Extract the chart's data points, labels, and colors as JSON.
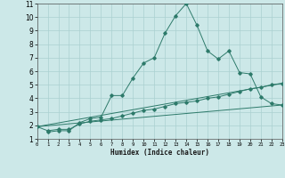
{
  "xlabel": "Humidex (Indice chaleur)",
  "bg_color": "#cce8e8",
  "grid_color": "#aad0d0",
  "line_color": "#2d7a6a",
  "xlim": [
    0,
    23
  ],
  "ylim": [
    1,
    11
  ],
  "xticks": [
    0,
    1,
    2,
    3,
    4,
    5,
    6,
    7,
    8,
    9,
    10,
    11,
    12,
    13,
    14,
    15,
    16,
    17,
    18,
    19,
    20,
    21,
    22,
    23
  ],
  "yticks": [
    1,
    2,
    3,
    4,
    5,
    6,
    7,
    8,
    9,
    10,
    11
  ],
  "series1_x": [
    1,
    2,
    3,
    4,
    5,
    6,
    7,
    8,
    9,
    10,
    11,
    12,
    13,
    14,
    15,
    16,
    17,
    18,
    19,
    20,
    21,
    22,
    23
  ],
  "series1_y": [
    1.5,
    1.6,
    1.6,
    2.2,
    2.5,
    2.6,
    4.2,
    4.2,
    5.5,
    6.6,
    7.0,
    8.8,
    10.1,
    11.0,
    9.4,
    7.5,
    6.9,
    7.5,
    5.9,
    5.8,
    4.1,
    3.6,
    3.5
  ],
  "series2_x": [
    0,
    1,
    2,
    3,
    4,
    5,
    6,
    7,
    8,
    9,
    10,
    11,
    12,
    13,
    14,
    15,
    16,
    17,
    18,
    19,
    20,
    21,
    22,
    23
  ],
  "series2_y": [
    1.9,
    1.6,
    1.7,
    1.7,
    2.1,
    2.3,
    2.4,
    2.5,
    2.7,
    2.9,
    3.1,
    3.2,
    3.4,
    3.6,
    3.7,
    3.8,
    4.0,
    4.1,
    4.3,
    4.5,
    4.7,
    4.8,
    5.0,
    5.1
  ],
  "series3_x": [
    0,
    23
  ],
  "series3_y": [
    1.9,
    3.5
  ],
  "series4_x": [
    0,
    23
  ],
  "series4_y": [
    1.9,
    5.1
  ]
}
